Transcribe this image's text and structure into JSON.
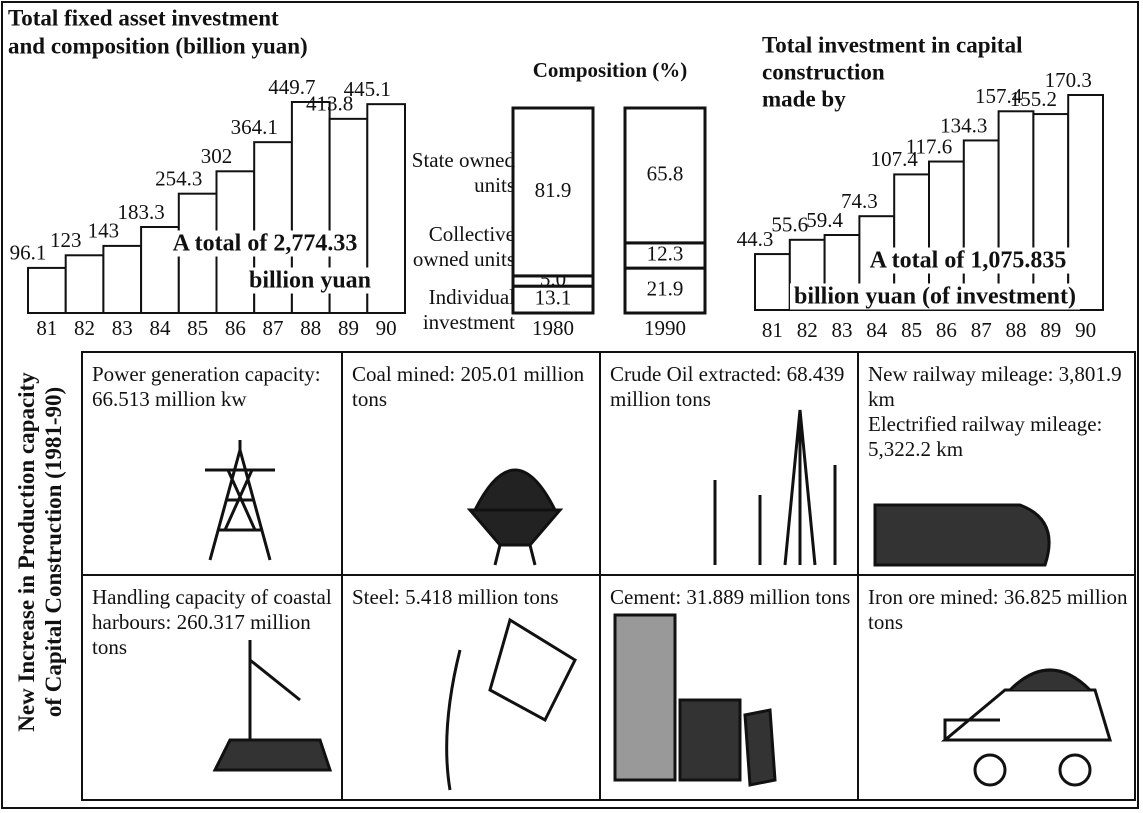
{
  "chart_data": [
    {
      "type": "bar",
      "title": [
        "Total fixed asset investment",
        "and composition (billion yuan)"
      ],
      "categories": [
        "81",
        "82",
        "83",
        "84",
        "85",
        "86",
        "87",
        "88",
        "89",
        "90"
      ],
      "values": [
        96.1,
        123,
        143,
        183.3,
        254.3,
        302,
        364.1,
        449.7,
        413.8,
        445.1
      ],
      "annotation": [
        "A total of 2,774.33",
        "billion yuan"
      ]
    },
    {
      "type": "stacked_bar",
      "title": "Composition (%)",
      "categories": [
        "1980",
        "1990"
      ],
      "series": [
        {
          "name": "State owned units",
          "values": [
            81.9,
            65.8
          ]
        },
        {
          "name": "Collective owned units",
          "values": [
            5,
            12.3
          ],
          "value_labels": [
            "5.0",
            "12.3"
          ]
        },
        {
          "name": "Individual investment",
          "values": [
            13.1,
            21.9
          ]
        }
      ]
    },
    {
      "type": "bar",
      "title": [
        "Total investment in capital",
        "construction",
        "made by"
      ],
      "categories": [
        "81",
        "82",
        "83",
        "84",
        "85",
        "86",
        "87",
        "88",
        "89",
        "90"
      ],
      "values": [
        44.3,
        55.6,
        59.4,
        74.3,
        107.4,
        117.6,
        134.3,
        157.4,
        155.2,
        170.3
      ],
      "annotation": [
        "A total of 1,075.835",
        "billion yuan (of investment)"
      ]
    }
  ],
  "side_label": [
    "New Increase in Production capacity",
    "of Capital Construction (1981-90)"
  ],
  "cells": [
    [
      "Power generation capacity: 66.513 million kw"
    ],
    [
      "Coal mined: 205.01 million tons"
    ],
    [
      "Crude Oil extracted: 68.439 million tons"
    ],
    [
      "New railway mileage: 3,801.9 km",
      "Electrified railway mileage: 5,322.2 km"
    ],
    [
      "Handling capacity of coastal harbours: 260.317 million tons"
    ],
    [
      "Steel: 5.418 million tons"
    ],
    [
      "Cement: 31.889 million tons"
    ],
    [
      "Iron ore mined: 36.825 million tons"
    ]
  ]
}
